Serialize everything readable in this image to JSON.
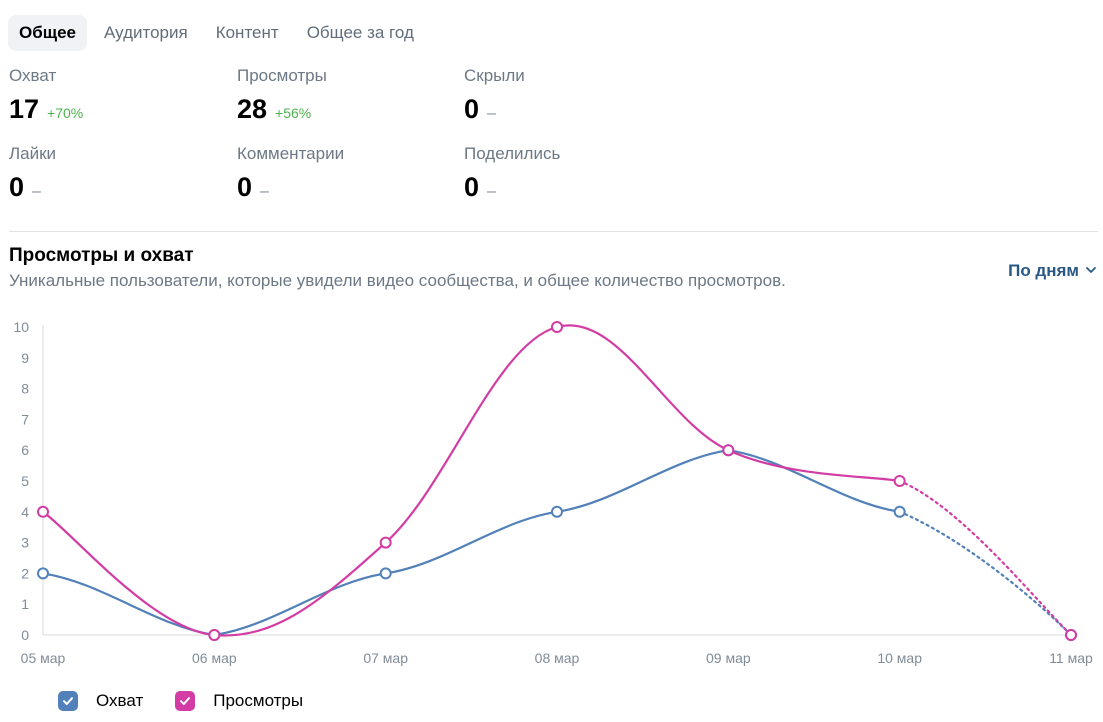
{
  "tabs": [
    {
      "label": "Общее",
      "active": true
    },
    {
      "label": "Аудитория",
      "active": false
    },
    {
      "label": "Контент",
      "active": false
    },
    {
      "label": "Общее за год",
      "active": false
    }
  ],
  "stats": [
    {
      "label": "Охват",
      "value": "17",
      "delta": "+70%"
    },
    {
      "label": "Просмотры",
      "value": "28",
      "delta": "+56%"
    },
    {
      "label": "Скрыли",
      "value": "0",
      "delta": "–"
    },
    {
      "label": "Лайки",
      "value": "0",
      "delta": "–"
    },
    {
      "label": "Комментарии",
      "value": "0",
      "delta": "–"
    },
    {
      "label": "Поделились",
      "value": "0",
      "delta": "–"
    }
  ],
  "chart_section": {
    "title": "Просмотры и охват",
    "subtitle": "Уникальные пользователи, которые увидели видео сообщества, и общее количество просмотров.",
    "period_label": "По дням"
  },
  "chart_data": {
    "type": "line",
    "categories": [
      "05 мар",
      "06 мар",
      "07 мар",
      "08 мар",
      "09 мар",
      "10 мар",
      "11 мар"
    ],
    "ylim": [
      0,
      10
    ],
    "yticks": [
      "0",
      "1",
      "2",
      "3",
      "4",
      "5",
      "6",
      "7",
      "8",
      "9",
      "10"
    ],
    "grid": false,
    "legend_position": "bottom-left",
    "series": [
      {
        "name": "Охват",
        "values": [
          2,
          0,
          2,
          4,
          6,
          4,
          0
        ],
        "color": "#5181b8",
        "dotted_last_segment": true
      },
      {
        "name": "Просмотры",
        "values": [
          4,
          0,
          3,
          10,
          6,
          5,
          0
        ],
        "color": "#d23ca4",
        "dotted_last_segment": true
      }
    ]
  },
  "colors": {
    "reach": "#5181b8",
    "views": "#d23ca4",
    "positive": "#4bb34b",
    "link": "#2a5885"
  },
  "icons": {
    "period": "chevron-down-icon",
    "legend": "checkmark-icon"
  }
}
